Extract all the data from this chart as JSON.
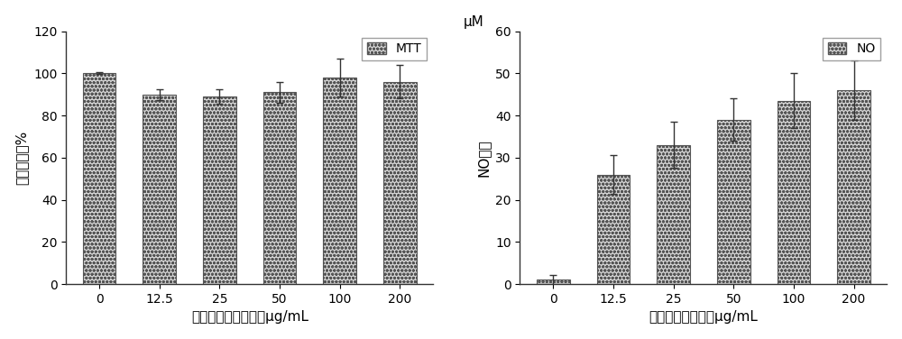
{
  "left": {
    "categories": [
      "0",
      "12.5",
      "25",
      "50",
      "100",
      "200"
    ],
    "values": [
      100,
      90,
      89,
      91,
      98,
      96
    ],
    "errors": [
      0.5,
      2.5,
      3.5,
      5,
      9,
      8
    ],
    "ylabel": "细胞存活率%",
    "xlabel": "小麦鼸皮多糖提取物μg/mL",
    "legend_label": "MTT",
    "ylim": [
      0,
      120
    ],
    "yticks": [
      0,
      20,
      40,
      60,
      80,
      100,
      120
    ]
  },
  "right": {
    "categories": [
      "0",
      "12.5",
      "25",
      "50",
      "100",
      "200"
    ],
    "values": [
      1,
      26,
      33,
      39,
      43.5,
      46
    ],
    "errors": [
      1.2,
      4.5,
      5.5,
      5,
      6.5,
      7
    ],
    "ylabel": "NO含量",
    "ylabel2": "μM",
    "xlabel": "小麦鼸皮多糖浓度μg/mL",
    "legend_label": "NO",
    "ylim": [
      0,
      60
    ],
    "yticks": [
      0,
      10,
      20,
      30,
      40,
      50,
      60
    ]
  },
  "bar_facecolor": "#d4d4d4",
  "bar_edgecolor": "#555555",
  "bar_linewidth": 0.8,
  "hatch_pattern": "oooo",
  "figure_facecolor": "#ffffff",
  "axes_facecolor": "#ffffff",
  "tick_fontsize": 10,
  "label_fontsize": 11,
  "legend_fontsize": 10,
  "bar_width": 0.55,
  "capsize": 3,
  "error_linewidth": 1.0,
  "error_color": "#333333"
}
